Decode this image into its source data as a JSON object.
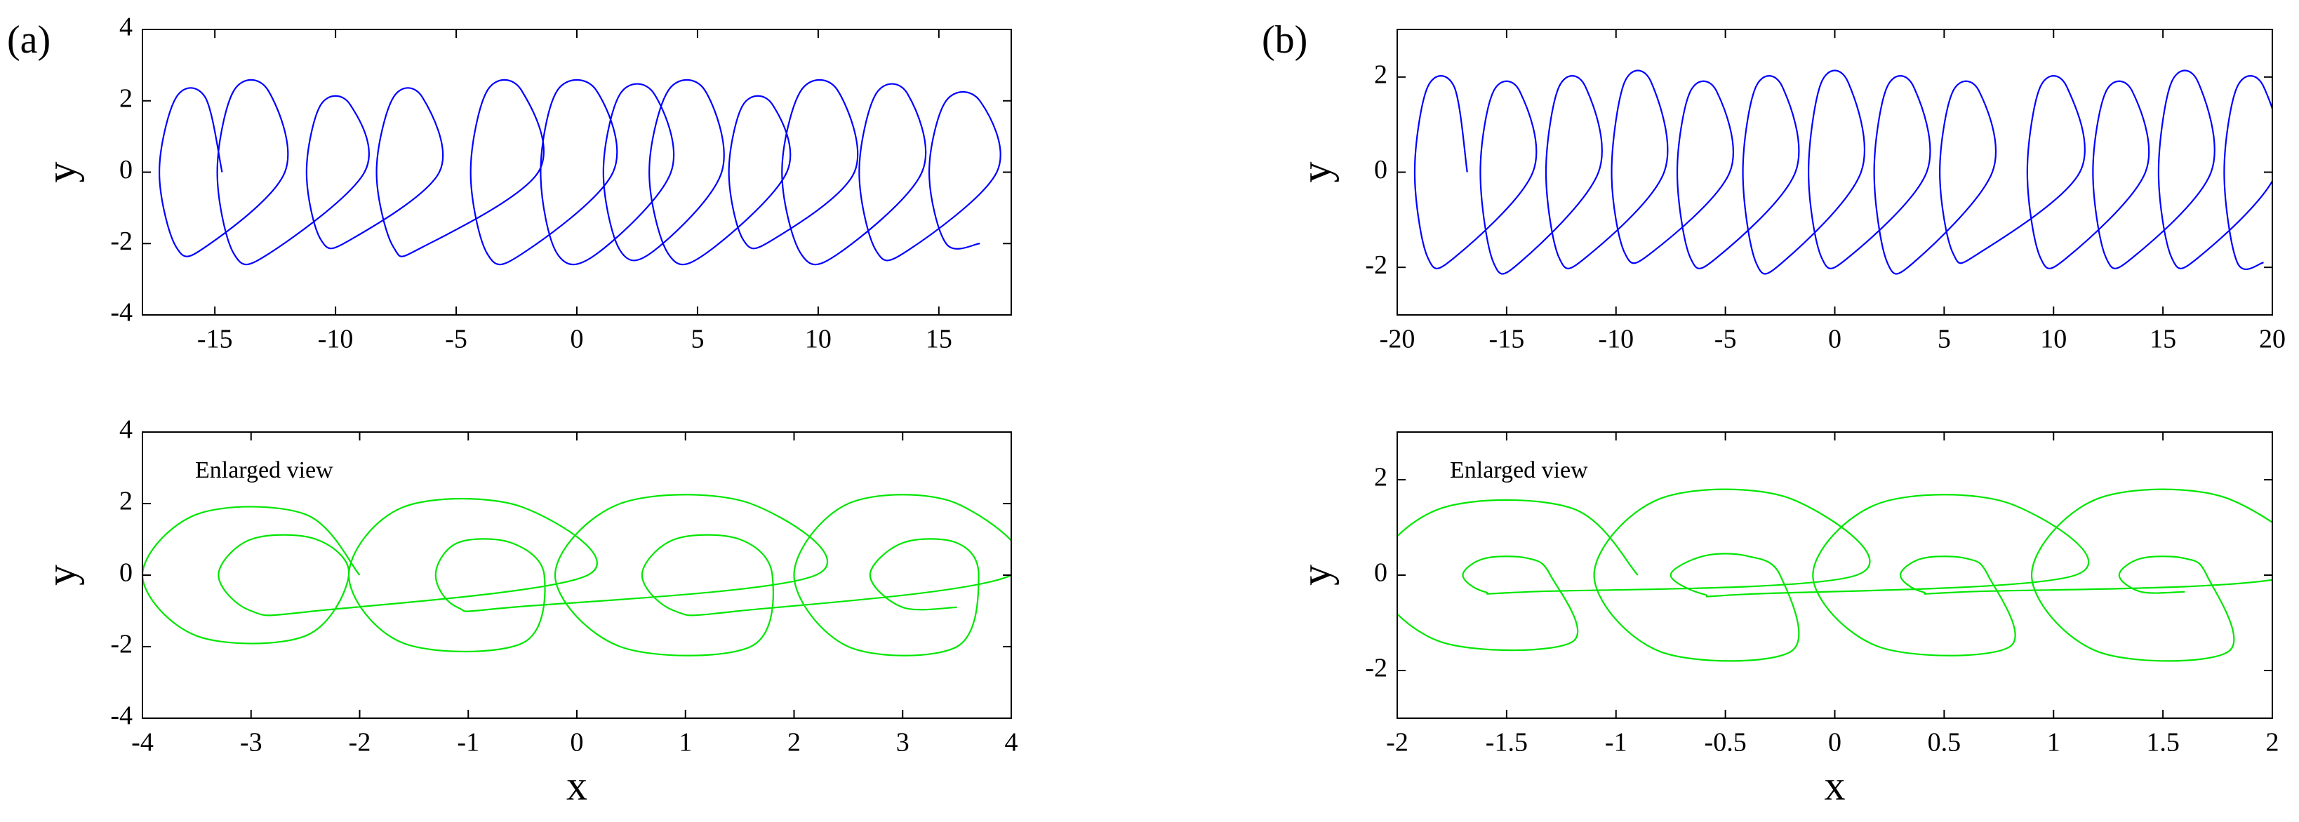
{
  "chart_data": [
    {
      "type": "line",
      "panel_label": "(a)",
      "y_label": "y",
      "color": "#0000ff",
      "xlim": [
        -18,
        18
      ],
      "xticks": [
        -15,
        -10,
        -5,
        0,
        5,
        10,
        15
      ],
      "ylim": [
        -4,
        4
      ],
      "yticks": [
        -4,
        -2,
        0,
        2,
        4
      ],
      "x": [
        -14.7,
        -15.4,
        -16.6,
        -17.3,
        -16.6,
        -15.4,
        -12.1,
        -12.8,
        -14.2,
        -14.9,
        -14.2,
        -12.8,
        -8.8,
        -9.4,
        -10.6,
        -11.2,
        -10.6,
        -9.4,
        -5.7,
        -6.4,
        -7.6,
        -8.3,
        -7.6,
        -6.4,
        -1.6,
        -2.3,
        -3.7,
        -4.4,
        -3.7,
        -2.3,
        1.5,
        0.8,
        -0.8,
        -1.5,
        -0.8,
        0.8,
        3.9,
        3.2,
        1.8,
        1.1,
        1.8,
        3.2,
        6,
        5.3,
        3.8,
        3,
        3.8,
        5.3,
        8.7,
        8.1,
        6.9,
        6.3,
        6.9,
        8.1,
        11.5,
        10.8,
        9.3,
        8.5,
        9.3,
        10.8,
        14.3,
        13.7,
        12.4,
        11.7,
        12.4,
        13.7,
        17.4,
        16.7,
        15.3,
        14.6,
        15.3,
        16.7
      ],
      "values": [
        0,
        2.1,
        2.1,
        0,
        -2.1,
        -2.1,
        0,
        2.3,
        2.3,
        0,
        -2.3,
        -2.3,
        0,
        1.9,
        1.9,
        0,
        -1.9,
        -1.9,
        0,
        2.1,
        2.1,
        0,
        -2.1,
        -2.1,
        0,
        2.3,
        2.3,
        0,
        -2.3,
        -2.3,
        0,
        2.3,
        2.3,
        0,
        -2.3,
        -2.3,
        0,
        2.2,
        2.2,
        0,
        -2.2,
        -2.2,
        0,
        2.3,
        2.3,
        0,
        -2.3,
        -2.3,
        0,
        1.9,
        1.9,
        0,
        -1.9,
        -1.9,
        0,
        2.3,
        2.3,
        0,
        -2.3,
        -2.3,
        0,
        2.2,
        2.2,
        0,
        -2.2,
        -2.2,
        0,
        2,
        2,
        0,
        -2,
        -2
      ]
    },
    {
      "type": "line",
      "annotation": "Enlarged view",
      "x_label": "x",
      "y_label": "y",
      "color": "#00e600",
      "xlim": [
        -4,
        4
      ],
      "xticks": [
        -4,
        -3,
        -2,
        -1,
        0,
        1,
        2,
        3,
        4
      ],
      "ylim": [
        -4,
        4
      ],
      "yticks": [
        -4,
        -2,
        0,
        2,
        4
      ],
      "x": [
        -2,
        -2.5,
        -3.5,
        -4,
        -3.5,
        -2.5,
        -2.1,
        -2.4,
        -3,
        -3.3,
        -3,
        -2.4,
        0.1,
        -0.5,
        -1.6,
        -2.1,
        -1.6,
        -0.5,
        -0.3,
        -0.6,
        -1.1,
        -1.3,
        -1.1,
        -0.6,
        2.2,
        1.6,
        0.4,
        -0.2,
        0.4,
        1.6,
        1.8,
        1.5,
        0.9,
        0.6,
        0.9,
        1.5,
        4,
        3.5,
        2.5,
        2,
        2.5,
        3.5,
        3.7,
        3.5,
        3,
        2.7,
        3,
        3.5
      ],
      "values": [
        0,
        1.7,
        1.7,
        0,
        -1.7,
        -1.7,
        0,
        1,
        1,
        0,
        -1,
        -1,
        0,
        1.9,
        1.9,
        0,
        -1.9,
        -1.9,
        0,
        0.9,
        0.9,
        0,
        -0.9,
        -0.9,
        0,
        2,
        2,
        0,
        -2,
        -2,
        0,
        1,
        1,
        0,
        -1,
        -1,
        0,
        2,
        2,
        0,
        -2,
        -2,
        0,
        0.9,
        0.9,
        0,
        -0.9,
        -0.9
      ]
    },
    {
      "type": "line",
      "panel_label": "(b)",
      "y_label": "y",
      "color": "#0000ff",
      "xlim": [
        -20,
        20
      ],
      "xticks": [
        -20,
        -15,
        -10,
        -5,
        0,
        5,
        10,
        15,
        20
      ],
      "ylim": [
        -3,
        3
      ],
      "yticks": [
        -2,
        0,
        2
      ],
      "x": [
        -16.8,
        -17.4,
        -18.6,
        -19.2,
        -18.6,
        -17.4,
        -13.8,
        -14.4,
        -15.6,
        -16.2,
        -15.6,
        -14.4,
        -10.8,
        -11.4,
        -12.6,
        -13.2,
        -12.6,
        -11.4,
        -7.8,
        -8.4,
        -9.6,
        -10.2,
        -9.6,
        -8.4,
        -4.8,
        -5.4,
        -6.6,
        -7.2,
        -6.6,
        -5.4,
        -1.8,
        -2.4,
        -3.6,
        -4.2,
        -3.6,
        -2.4,
        1.2,
        0.6,
        -0.6,
        -1.2,
        -0.6,
        0.6,
        4.2,
        3.6,
        2.4,
        1.8,
        2.4,
        3.6,
        7.2,
        6.6,
        5.4,
        4.8,
        5.4,
        6.6,
        11.2,
        10.6,
        9.4,
        8.8,
        9.4,
        10.6,
        14.2,
        13.6,
        12.4,
        11.8,
        12.4,
        13.6,
        17.2,
        16.6,
        15.4,
        14.8,
        15.4,
        16.6,
        20.2,
        19.6,
        18.4,
        17.8,
        18.4,
        19.6
      ],
      "values": [
        0,
        1.8,
        1.8,
        0,
        -1.8,
        -1.8,
        0,
        1.7,
        1.7,
        0,
        -1.9,
        -1.9,
        0,
        1.8,
        1.8,
        0,
        -1.8,
        -1.8,
        0,
        1.9,
        1.9,
        0,
        -1.7,
        -1.7,
        0,
        1.7,
        1.7,
        0,
        -1.8,
        -1.8,
        0,
        1.8,
        1.8,
        0,
        -1.9,
        -1.9,
        0,
        1.9,
        1.9,
        0,
        -1.8,
        -1.8,
        0,
        1.8,
        1.8,
        0,
        -1.9,
        -1.9,
        0,
        1.7,
        1.7,
        0,
        -1.7,
        -1.7,
        0,
        1.8,
        1.8,
        0,
        -1.8,
        -1.8,
        0,
        1.7,
        1.7,
        0,
        -1.8,
        -1.8,
        0,
        1.9,
        1.9,
        0,
        -1.8,
        -1.8,
        0,
        1.8,
        1.8,
        0,
        -1.9,
        -1.9
      ]
    },
    {
      "type": "line",
      "annotation": "Enlarged view",
      "x_label": "x",
      "y_label": "y",
      "color": "#00e600",
      "xlim": [
        -2,
        2
      ],
      "xticks": [
        -2,
        -1.5,
        -1,
        -0.5,
        0,
        0.5,
        1,
        1.5,
        2
      ],
      "ylim": [
        -3,
        3
      ],
      "yticks": [
        -2,
        0,
        2
      ],
      "x": [
        -0.9,
        -1.2,
        -1.8,
        -2.1,
        -1.8,
        -1.2,
        -1.3,
        -1.4,
        -1.6,
        -1.7,
        -1.6,
        -1.4,
        0.1,
        -0.2,
        -0.8,
        -1.1,
        -0.8,
        -0.2,
        -0.25,
        -0.4,
        -0.6,
        -0.75,
        -0.6,
        -0.4,
        1.1,
        0.8,
        0.2,
        -0.1,
        0.2,
        0.8,
        0.7,
        0.6,
        0.4,
        0.3,
        0.4,
        0.6,
        2.1,
        1.8,
        1.2,
        0.9,
        1.2,
        1.8,
        1.7,
        1.6,
        1.4,
        1.3,
        1.4,
        1.6
      ],
      "values": [
        0,
        1.4,
        1.4,
        0,
        -1.4,
        -1.4,
        0,
        0.35,
        0.35,
        0,
        -0.35,
        -0.35,
        0,
        1.6,
        1.6,
        0,
        -1.6,
        -1.6,
        0,
        0.4,
        0.4,
        0,
        -0.4,
        -0.4,
        0,
        1.5,
        1.5,
        0,
        -1.5,
        -1.5,
        0,
        0.35,
        0.35,
        0,
        -0.35,
        -0.35,
        0,
        1.6,
        1.6,
        0,
        -1.6,
        -1.6,
        0,
        0.35,
        0.35,
        0,
        -0.35,
        -0.35
      ]
    }
  ]
}
